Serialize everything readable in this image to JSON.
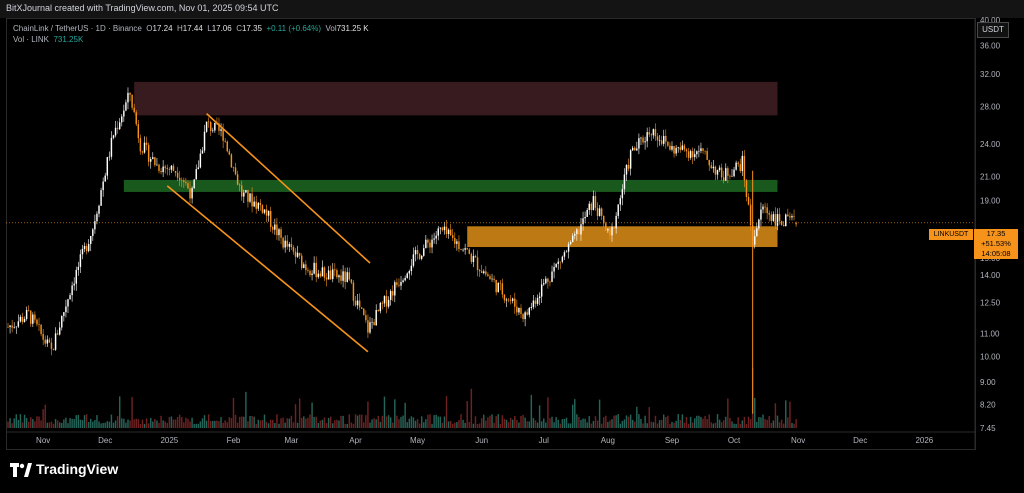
{
  "header": {
    "attribution": "BitXJournal created with TradingView.com, Nov 01, 2025 09:54 UTC"
  },
  "legend": {
    "symbol": "ChainLink / TetherUS · 1D · Binance",
    "open_label": "O",
    "open": "17.24",
    "high_label": "H",
    "high": "17.44",
    "low_label": "L",
    "low": "17.06",
    "close_label": "C",
    "close": "17.35",
    "change": "+0.11 (+0.64%)",
    "vol_label": "Vol",
    "vol": "731.25 K",
    "vol_line_label": "Vol · LINK",
    "vol_line_value": "731.25K"
  },
  "axis": {
    "currency": "USDT",
    "price_ticks": [
      "40.00",
      "36.00",
      "32.00",
      "28.00",
      "24.00",
      "21.00",
      "19.00",
      "15.00",
      "14.00",
      "12.50",
      "11.00",
      "10.00",
      "9.00",
      "8.20",
      "7.45"
    ],
    "time_ticks": [
      "Nov",
      "Dec",
      "2025",
      "Feb",
      "Mar",
      "Apr",
      "May",
      "Jun",
      "Jul",
      "Aug",
      "Sep",
      "Oct",
      "Nov",
      "Dec",
      "2026"
    ]
  },
  "price_label": {
    "symbol": "LINKUSDT",
    "price": "17.35",
    "change_pct": "+51.53%",
    "countdown": "14:05:08"
  },
  "brand": {
    "name": "TradingView"
  },
  "colors": {
    "up": "#ffffff",
    "down": "#f7931a",
    "resistance_zone": "#3d1e21",
    "support_zone_green": "#1b5e20",
    "support_zone_orange": "#c77f14",
    "channel": "#f7931a",
    "vol_up": "#2e7d6e",
    "vol_down": "#8b2a2a"
  },
  "chart_data": {
    "type": "candlestick",
    "title": "ChainLink / TetherUS · 1D · Binance",
    "scale": "log",
    "ylim": [
      7.45,
      40.0
    ],
    "x_range": [
      "2024-10-15",
      "2026-01-25"
    ],
    "zones": [
      {
        "kind": "resistance",
        "from": "2024-12-15",
        "to": "2025-10-22",
        "low": 27.0,
        "high": 31.0
      },
      {
        "kind": "support",
        "from": "2024-12-10",
        "to": "2025-10-22",
        "low": 19.7,
        "high": 20.7
      },
      {
        "kind": "support",
        "from": "2025-05-25",
        "to": "2025-10-22",
        "low": 15.7,
        "high": 17.1
      }
    ],
    "channel": [
      {
        "x": [
          "2025-01-19",
          "2025-04-08"
        ],
        "y": [
          27.2,
          14.7
        ]
      },
      {
        "x": [
          "2024-12-31",
          "2025-04-07"
        ],
        "y": [
          20.2,
          10.2
        ]
      }
    ],
    "price_path": [
      {
        "x": "2024-10-15",
        "y": 11.3
      },
      {
        "x": "2024-10-25",
        "y": 11.9
      },
      {
        "x": "2024-11-05",
        "y": 10.2
      },
      {
        "x": "2024-11-15",
        "y": 13.5
      },
      {
        "x": "2024-11-25",
        "y": 17.0
      },
      {
        "x": "2024-12-05",
        "y": 25.0
      },
      {
        "x": "2024-12-13",
        "y": 29.5
      },
      {
        "x": "2024-12-18",
        "y": 24.0
      },
      {
        "x": "2024-12-26",
        "y": 22.0
      },
      {
        "x": "2025-01-05",
        "y": 21.5
      },
      {
        "x": "2025-01-12",
        "y": 19.5
      },
      {
        "x": "2025-01-19",
        "y": 26.0
      },
      {
        "x": "2025-01-27",
        "y": 25.0
      },
      {
        "x": "2025-02-05",
        "y": 19.5
      },
      {
        "x": "2025-02-15",
        "y": 18.5
      },
      {
        "x": "2025-02-25",
        "y": 16.0
      },
      {
        "x": "2025-03-08",
        "y": 14.5
      },
      {
        "x": "2025-03-18",
        "y": 14.0
      },
      {
        "x": "2025-03-28",
        "y": 13.8
      },
      {
        "x": "2025-04-07",
        "y": 11.2
      },
      {
        "x": "2025-04-18",
        "y": 13.0
      },
      {
        "x": "2025-04-28",
        "y": 14.8
      },
      {
        "x": "2025-05-12",
        "y": 16.8
      },
      {
        "x": "2025-05-22",
        "y": 15.8
      },
      {
        "x": "2025-06-05",
        "y": 13.8
      },
      {
        "x": "2025-06-22",
        "y": 11.8
      },
      {
        "x": "2025-07-01",
        "y": 13.5
      },
      {
        "x": "2025-07-15",
        "y": 16.0
      },
      {
        "x": "2025-07-25",
        "y": 19.0
      },
      {
        "x": "2025-08-02",
        "y": 16.2
      },
      {
        "x": "2025-08-12",
        "y": 23.0
      },
      {
        "x": "2025-08-22",
        "y": 25.5
      },
      {
        "x": "2025-09-01",
        "y": 23.5
      },
      {
        "x": "2025-09-15",
        "y": 23.2
      },
      {
        "x": "2025-09-25",
        "y": 21.0
      },
      {
        "x": "2025-10-05",
        "y": 22.2
      },
      {
        "x": "2025-10-10",
        "y": 16.2
      },
      {
        "x": "2025-10-15",
        "y": 18.5
      },
      {
        "x": "2025-10-22",
        "y": 17.5
      },
      {
        "x": "2025-10-31",
        "y": 17.35
      }
    ],
    "last": {
      "x": "2025-10-31",
      "open": 17.24,
      "high": 17.44,
      "low": 17.06,
      "close": 17.35
    }
  }
}
